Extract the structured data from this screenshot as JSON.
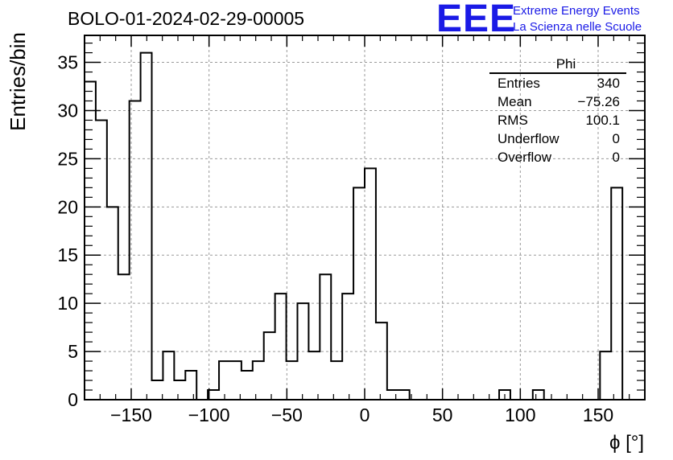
{
  "title": "BOLO-01-2024-02-29-00005",
  "logo": {
    "mark": "EEE",
    "line1": "Extreme Energy Events",
    "line2": "La Scienza nelle Scuole",
    "color": "#1a1ae6"
  },
  "stats_box": {
    "name": "Phi",
    "rows": [
      {
        "label": "Entries",
        "value": "340"
      },
      {
        "label": "Mean",
        "value": "−75.26"
      },
      {
        "label": "RMS",
        "value": "100.1"
      },
      {
        "label": "Underflow",
        "value": "0"
      },
      {
        "label": "Overflow",
        "value": "0"
      }
    ]
  },
  "chart_data": {
    "type": "histogram",
    "xlabel": "ϕ [°]",
    "ylabel": "Entries/bin",
    "xlim": [
      -180,
      180
    ],
    "ylim": [
      0,
      37.8
    ],
    "bin_width": 7.2,
    "bin_values": [
      33,
      29,
      20,
      13,
      31,
      36,
      2,
      5,
      2,
      3,
      0,
      1,
      4,
      4,
      3,
      4,
      7,
      11,
      4,
      10,
      5,
      13,
      4,
      11,
      22,
      24,
      8,
      1,
      1,
      0,
      0,
      0,
      0,
      0,
      0,
      0,
      0,
      1,
      0,
      0,
      1,
      0,
      0,
      0,
      0,
      0,
      5,
      22,
      0,
      0
    ],
    "x_ticks": [
      -150,
      -100,
      -50,
      0,
      50,
      100,
      150
    ],
    "x_tick_labels": [
      "−150",
      "−100",
      "−50",
      "0",
      "50",
      "100",
      "150"
    ],
    "y_ticks": [
      0,
      5,
      10,
      15,
      20,
      25,
      30,
      35
    ],
    "y_tick_labels": [
      "0",
      "5",
      "10",
      "15",
      "20",
      "25",
      "30",
      "35"
    ],
    "grid": true,
    "line_color": "#000000"
  }
}
